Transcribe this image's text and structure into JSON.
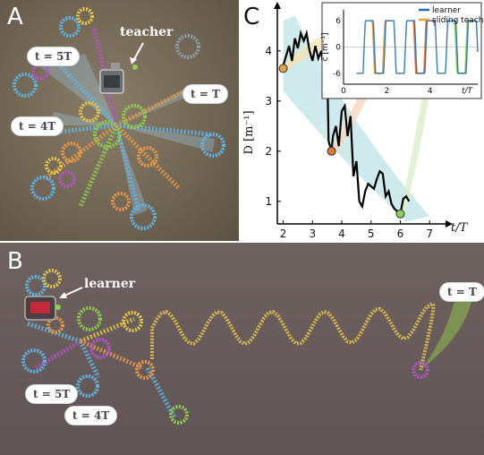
{
  "panels": {
    "a": {
      "letter": "A",
      "teacher_label": "teacher",
      "pills": [
        {
          "id": "t5T",
          "text": "t = 5T"
        },
        {
          "id": "tT",
          "text": "t = T"
        },
        {
          "id": "t4T",
          "text": "t = 4T"
        }
      ]
    },
    "b": {
      "letter": "B",
      "learner_label": "learner",
      "pills": [
        {
          "id": "tT",
          "text": "t = T"
        },
        {
          "id": "t5T",
          "text": "t = 5T"
        },
        {
          "id": "t4T",
          "text": "t = 4T"
        }
      ]
    },
    "c": {
      "letter": "C"
    }
  },
  "trail_colors": {
    "blue": "#5fb7e8",
    "yellow": "#e6c84a",
    "magenta": "#b455c8",
    "green": "#8fcf4d",
    "orange": "#e89a4a"
  },
  "chart_data": [
    {
      "type": "line",
      "title": "",
      "xlabel": "t/T",
      "ylabel": "D [m⁻¹]",
      "xlim": [
        1.8,
        7.3
      ],
      "ylim": [
        0.55,
        4.8
      ],
      "xticks": [
        2,
        3,
        4,
        5,
        6,
        7
      ],
      "yticks": [
        1,
        2,
        3,
        4
      ],
      "series": [
        {
          "name": "",
          "color": "#000000",
          "x": [
            2.0,
            2.1,
            2.2,
            2.3,
            2.4,
            2.5,
            2.6,
            2.7,
            2.8,
            2.9,
            3.0,
            3.1,
            3.2,
            3.3,
            3.4,
            3.5,
            3.55,
            3.65,
            3.7,
            3.8,
            3.9,
            4.0,
            4.1,
            4.2,
            4.3,
            4.4,
            4.5,
            4.6,
            4.7,
            4.8,
            4.9,
            5.0,
            5.1,
            5.2,
            5.3,
            5.4,
            5.5,
            5.6,
            5.7,
            5.8,
            5.9,
            6.0,
            6.1,
            6.2,
            6.3
          ],
          "y": [
            3.7,
            3.9,
            4.1,
            3.8,
            4.25,
            4.05,
            4.35,
            4.2,
            4.35,
            4.0,
            3.8,
            4.1,
            3.85,
            4.0,
            3.5,
            3.8,
            2.2,
            2.0,
            2.3,
            2.5,
            2.1,
            2.8,
            2.9,
            2.3,
            2.7,
            1.5,
            1.8,
            1.0,
            0.9,
            1.2,
            1.35,
            1.3,
            1.25,
            1.45,
            1.6,
            1.55,
            1.1,
            1.2,
            0.95,
            0.85,
            0.8,
            0.75,
            1.05,
            1.1,
            1.0
          ]
        }
      ],
      "markers": [
        {
          "x": 2.0,
          "y": 3.65,
          "color": "#e8a23c"
        },
        {
          "x": 3.65,
          "y": 2.0,
          "color": "#e8732c"
        },
        {
          "x": 6.0,
          "y": 0.75,
          "color": "#8ccf5a"
        }
      ]
    },
    {
      "type": "line",
      "title": "",
      "xlabel": "t/T",
      "ylabel": "c [m⁻¹]",
      "xlim": [
        0,
        6.2
      ],
      "ylim": [
        -8.5,
        8.5
      ],
      "xticks": [
        0,
        2,
        4
      ],
      "yticks": [
        -6,
        0,
        6
      ],
      "legend": "top-right",
      "series": [
        {
          "name": "learner",
          "color": "#1f6fb5",
          "wave": {
            "amplitude": 6,
            "freq": 2.1
          }
        },
        {
          "name": "sliding teacher",
          "color": "#e8a23c",
          "wave": {
            "amplitude": 6,
            "freq": 2.1
          }
        }
      ]
    }
  ]
}
